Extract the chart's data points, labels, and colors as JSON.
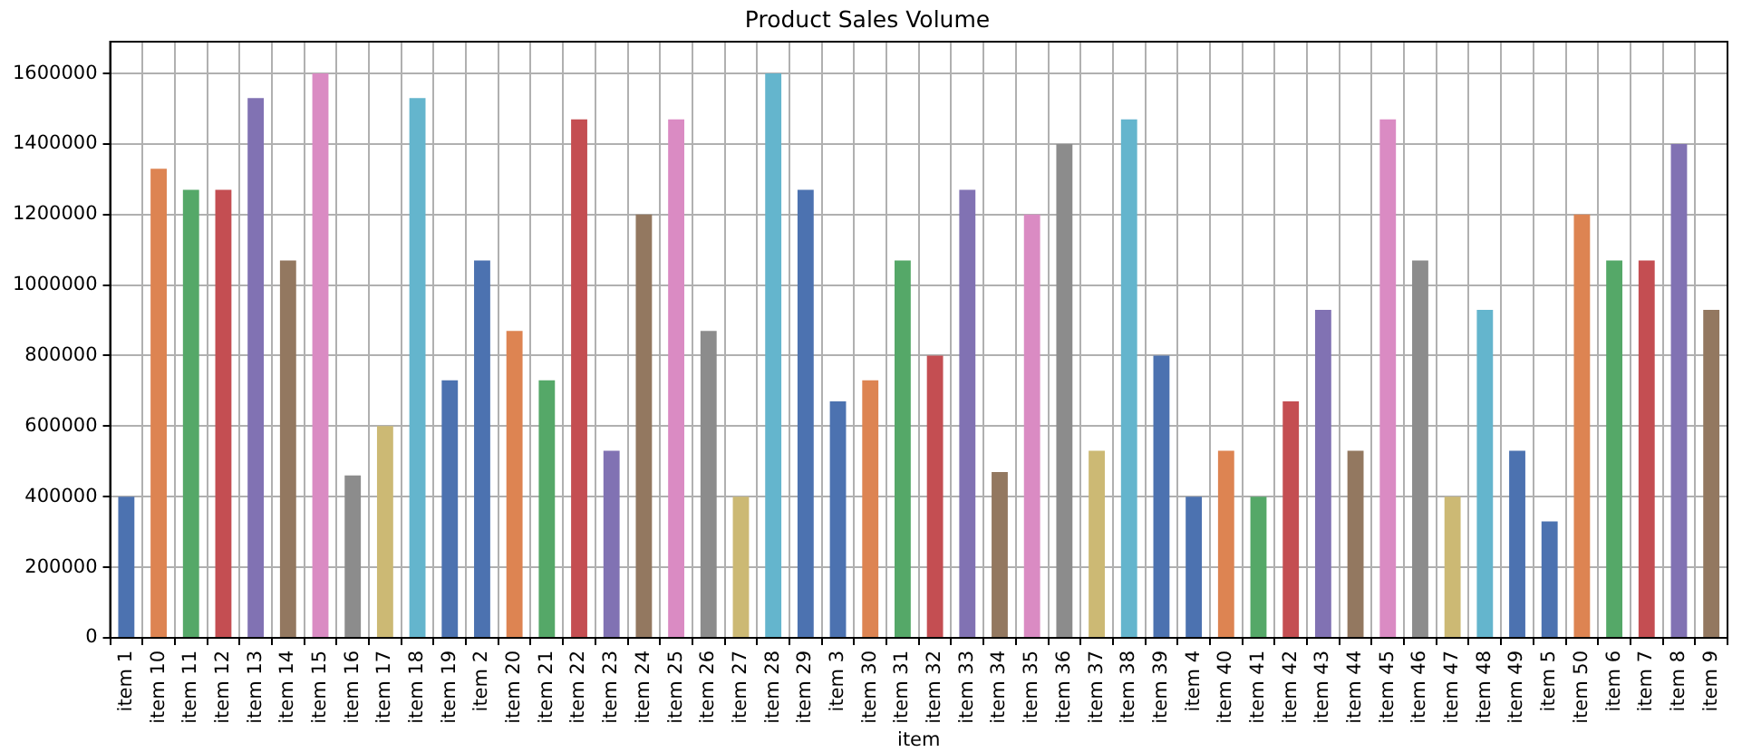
{
  "chart_data": {
    "type": "bar",
    "title": "Product Sales Volume",
    "xlabel": "item",
    "categories": [
      "item 1",
      "item 10",
      "item 11",
      "item 12",
      "item 13",
      "item 14",
      "item 15",
      "item 16",
      "item 17",
      "item 18",
      "item 19",
      "item 2",
      "item 20",
      "item 21",
      "item 22",
      "item 23",
      "item 24",
      "item 25",
      "item 26",
      "item 27",
      "item 28",
      "item 29",
      "item 3",
      "item 30",
      "item 31",
      "item 32",
      "item 33",
      "item 34",
      "item 35",
      "item 36",
      "item 37",
      "item 38",
      "item 39",
      "item 4",
      "item 40",
      "item 41",
      "item 42",
      "item 43",
      "item 44",
      "item 45",
      "item 46",
      "item 47",
      "item 48",
      "item 49",
      "item 5",
      "item 50",
      "item 6",
      "item 7",
      "item 8",
      "item 9"
    ],
    "values": [
      400000,
      1330000,
      1270000,
      1270000,
      1530000,
      1070000,
      1600000,
      460000,
      600000,
      1530000,
      730000,
      1070000,
      870000,
      730000,
      1470000,
      530000,
      1200000,
      1470000,
      870000,
      400000,
      1600000,
      1270000,
      670000,
      730000,
      1070000,
      800000,
      1270000,
      470000,
      1200000,
      1400000,
      530000,
      1470000,
      800000,
      400000,
      530000,
      400000,
      670000,
      930000,
      530000,
      1470000,
      1070000,
      400000,
      930000,
      530000,
      330000,
      1200000,
      1070000,
      1070000,
      1400000,
      930000
    ],
    "colors": [
      "#4c72b0",
      "#dd8452",
      "#55a868",
      "#c44e52",
      "#8172b3",
      "#937860",
      "#da8bc3",
      "#8c8c8c",
      "#ccb974",
      "#64b5cd",
      "#4c72b0",
      "#4c72b0",
      "#dd8452",
      "#55a868",
      "#c44e52",
      "#8172b3",
      "#937860",
      "#da8bc3",
      "#8c8c8c",
      "#ccb974",
      "#64b5cd",
      "#4c72b0",
      "#4c72b0",
      "#dd8452",
      "#55a868",
      "#c44e52",
      "#8172b3",
      "#937860",
      "#da8bc3",
      "#8c8c8c",
      "#ccb974",
      "#64b5cd",
      "#4c72b0",
      "#4c72b0",
      "#dd8452",
      "#55a868",
      "#c44e52",
      "#8172b3",
      "#937860",
      "#da8bc3",
      "#8c8c8c",
      "#ccb974",
      "#64b5cd",
      "#4c72b0",
      "#4c72b0",
      "#dd8452",
      "#55a868",
      "#c44e52",
      "#8172b3",
      "#937860"
    ],
    "ylim": [
      0,
      1690000
    ],
    "yticks": [
      0,
      200000,
      400000,
      600000,
      800000,
      1000000,
      1200000,
      1400000,
      1600000
    ],
    "grid": true,
    "legend": false
  }
}
